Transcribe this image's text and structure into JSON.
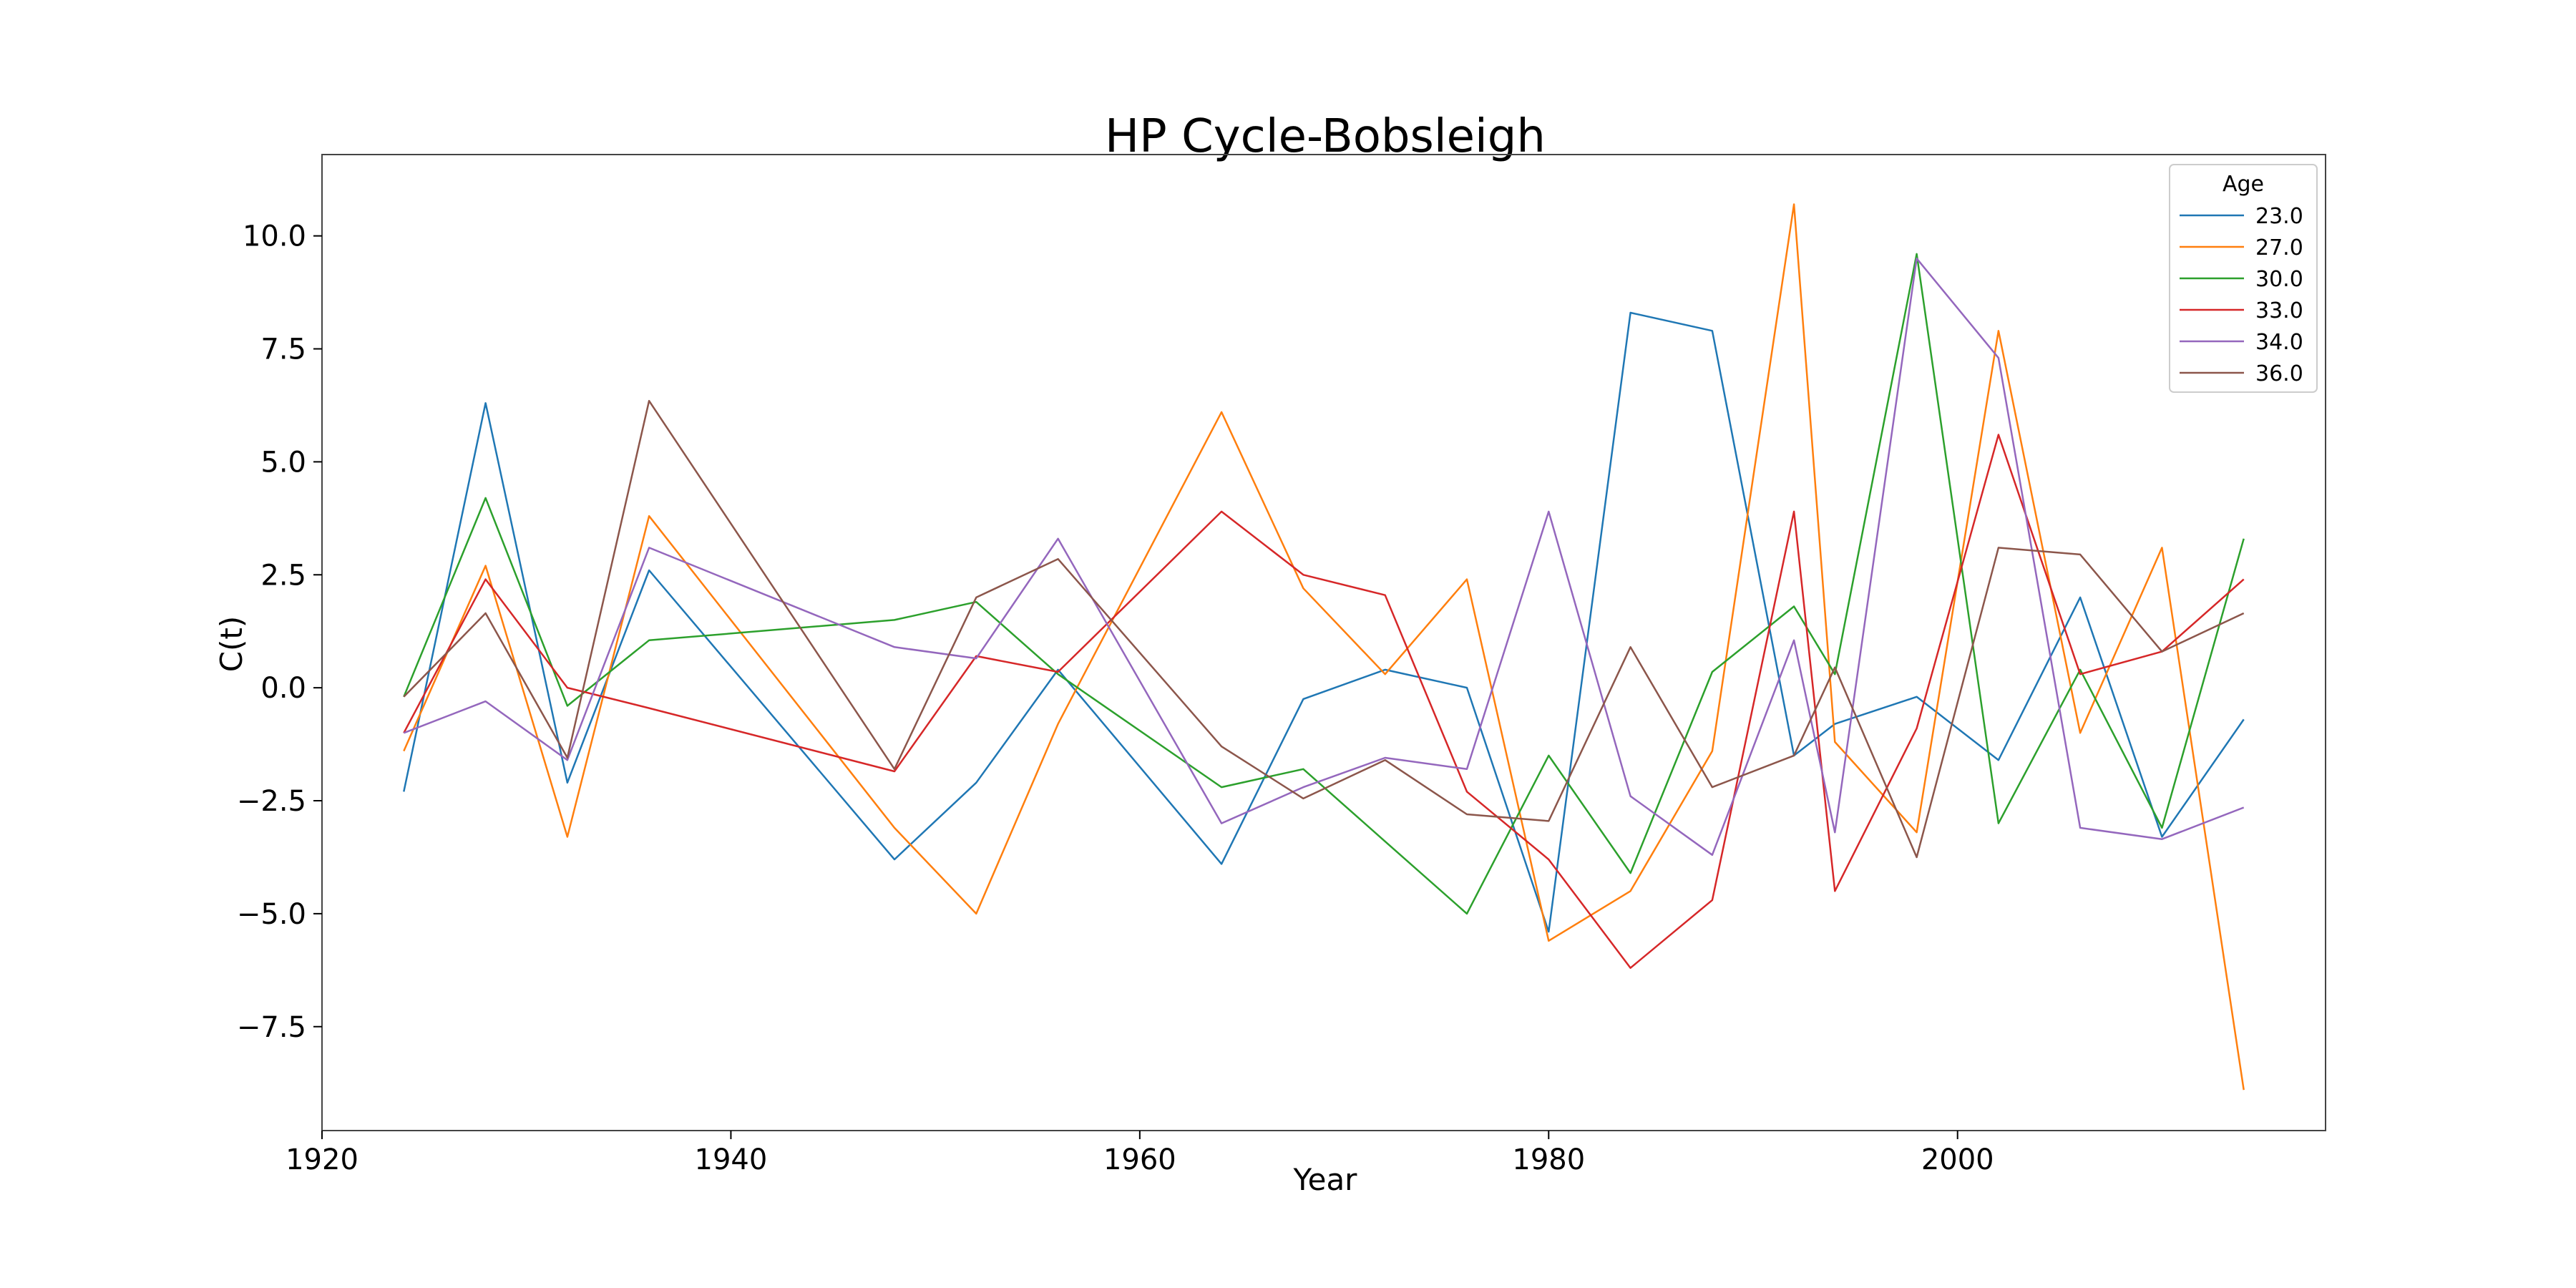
{
  "chart_data": {
    "type": "line",
    "title": "HP Cycle-Bobsleigh",
    "xlabel": "Year",
    "ylabel": "C(t)",
    "xlim": [
      1920,
      2018
    ],
    "ylim": [
      -9.8,
      11.8
    ],
    "xticks": [
      1920,
      1940,
      1960,
      1980,
      2000
    ],
    "yticks": [
      -7.5,
      -5.0,
      -2.5,
      0.0,
      2.5,
      5.0,
      7.5,
      10.0
    ],
    "grid": false,
    "legend": {
      "title": "Age",
      "placement": "top-right"
    },
    "x": [
      1924,
      1928,
      1932,
      1936,
      1948,
      1952,
      1956,
      1964,
      1968,
      1972,
      1976,
      1980,
      1984,
      1988,
      1992,
      1994,
      1998,
      2002,
      2006,
      2010,
      2014
    ],
    "series": [
      {
        "name": "23.0",
        "color": "#1f77b4",
        "values": [
          -2.3,
          6.3,
          -2.1,
          2.6,
          -3.8,
          -2.1,
          0.4,
          -3.9,
          -0.25,
          0.4,
          0.0,
          -5.4,
          8.3,
          7.9,
          -1.5,
          -0.8,
          -0.2,
          -1.6,
          2.0,
          -3.3,
          -0.7
        ]
      },
      {
        "name": "27.0",
        "color": "#ff7f0e",
        "values": [
          -1.4,
          2.7,
          -3.3,
          3.8,
          -3.1,
          -5.0,
          -0.8,
          6.1,
          2.2,
          0.3,
          2.4,
          -5.6,
          -4.5,
          -1.4,
          10.7,
          -1.2,
          -3.2,
          7.9,
          -1.0,
          3.1,
          -8.9
        ]
      },
      {
        "name": "30.0",
        "color": "#2ca02c",
        "values": [
          -0.2,
          4.2,
          -0.4,
          1.05,
          1.5,
          1.9,
          0.3,
          -2.2,
          -1.8,
          -3.4,
          -5.0,
          -1.5,
          -4.1,
          0.35,
          1.8,
          0.3,
          9.6,
          -3.0,
          0.4,
          -3.1,
          3.3
        ]
      },
      {
        "name": "33.0",
        "color": "#d62728",
        "values": [
          -1.0,
          2.4,
          0.0,
          -0.45,
          -1.85,
          0.7,
          0.35,
          3.9,
          2.5,
          2.05,
          -2.3,
          -3.8,
          -6.2,
          -4.7,
          3.9,
          -4.5,
          -0.9,
          5.6,
          0.3,
          0.8,
          2.4
        ]
      },
      {
        "name": "34.0",
        "color": "#9467bd",
        "values": [
          -1.0,
          -0.3,
          -1.6,
          3.1,
          0.9,
          0.65,
          3.3,
          -3.0,
          -2.2,
          -1.55,
          -1.8,
          3.9,
          -2.4,
          -3.7,
          1.05,
          -3.2,
          9.5,
          7.3,
          -3.1,
          -3.35,
          -2.65
        ]
      },
      {
        "name": "36.0",
        "color": "#8c564b",
        "values": [
          -0.2,
          1.65,
          -1.55,
          6.35,
          -1.8,
          2.0,
          2.85,
          -1.3,
          -2.45,
          -1.6,
          -2.8,
          -2.95,
          0.9,
          -2.2,
          -1.5,
          0.45,
          -3.75,
          3.1,
          2.95,
          0.8,
          1.65
        ]
      }
    ]
  }
}
